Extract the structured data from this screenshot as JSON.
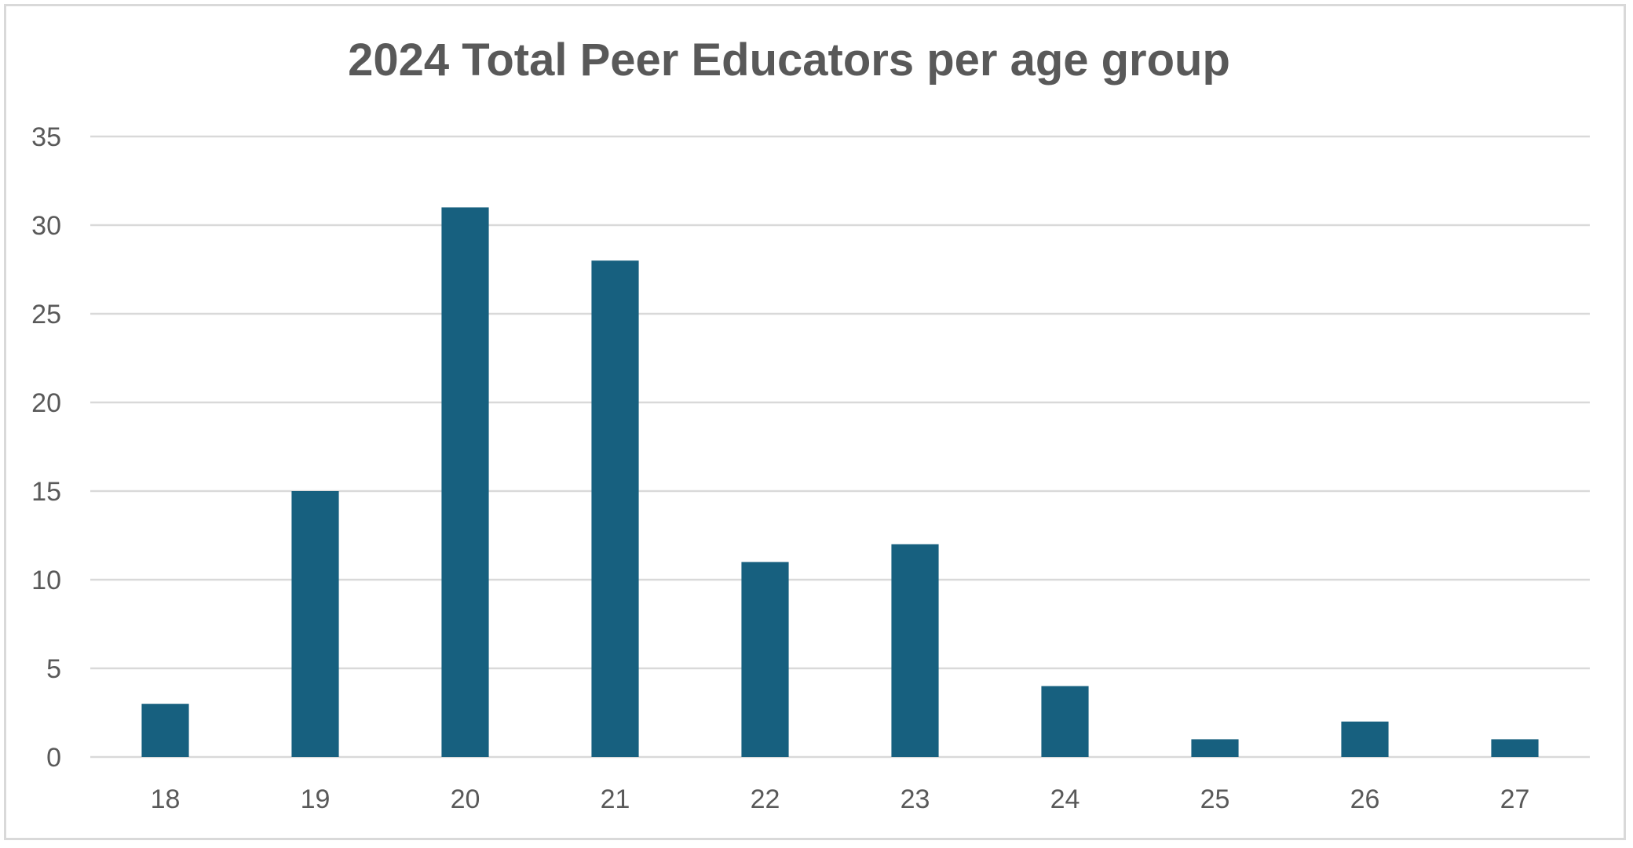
{
  "chart_data": {
    "type": "bar",
    "title": "2024 Total Peer Educators per age group",
    "xlabel": "",
    "ylabel": "",
    "categories": [
      "18",
      "19",
      "20",
      "21",
      "22",
      "23",
      "24",
      "25",
      "26",
      "27"
    ],
    "values": [
      3,
      15,
      31,
      28,
      11,
      12,
      4,
      1,
      2,
      1
    ],
    "ylim": [
      0,
      35
    ],
    "yticks": [
      0,
      5,
      10,
      15,
      20,
      25,
      30,
      35
    ],
    "grid": true,
    "legend": "none",
    "bar_color": "#17607f",
    "gridline_color": "#d9d9d9",
    "text_color": "#595959"
  }
}
